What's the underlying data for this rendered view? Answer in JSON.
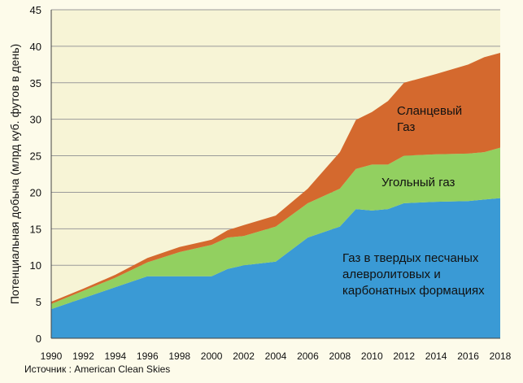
{
  "chart_data": {
    "type": "area",
    "stacked": true,
    "ylabel": "Потенциальная добыча (млрд куб. футов в день)",
    "xlabel": "",
    "source_note": "Источник : American Clean Skies",
    "x": [
      1990,
      1992,
      1994,
      1996,
      1998,
      2000,
      2001,
      2002,
      2004,
      2006,
      2008,
      2009,
      2010,
      2011,
      2012,
      2014,
      2016,
      2017,
      2018
    ],
    "x_ticks": [
      1990,
      1992,
      1994,
      1996,
      1998,
      2000,
      2002,
      2004,
      2006,
      2008,
      2010,
      2012,
      2014,
      2016,
      2018
    ],
    "ylim": [
      0,
      45
    ],
    "y_ticks": [
      0,
      5,
      10,
      15,
      20,
      25,
      30,
      35,
      40,
      45
    ],
    "grid": "horizontal",
    "series": [
      {
        "name": "Газ в твердых песчаных алевролитовых и карбонатных формациях",
        "color": "#3a9ad5",
        "values": [
          4.0,
          5.5,
          7.0,
          8.5,
          8.5,
          8.5,
          9.5,
          10.0,
          10.5,
          13.8,
          15.3,
          17.7,
          17.5,
          17.7,
          18.5,
          18.7,
          18.8,
          19.0,
          19.2
        ]
      },
      {
        "name": "Угольный газ",
        "color": "#92d060",
        "values": [
          0.7,
          1.0,
          1.3,
          1.9,
          3.3,
          4.3,
          4.3,
          4.0,
          4.8,
          4.7,
          5.2,
          5.5,
          6.3,
          6.1,
          6.5,
          6.5,
          6.5,
          6.5,
          6.9
        ]
      },
      {
        "name": "Сланцевый Газ",
        "color": "#d4692e",
        "values": [
          0.3,
          0.3,
          0.4,
          0.6,
          0.7,
          0.7,
          1.0,
          1.5,
          1.5,
          2.0,
          5.0,
          6.7,
          7.2,
          8.7,
          10.0,
          11.0,
          12.2,
          13.0,
          13.0
        ]
      }
    ],
    "annotations": [
      {
        "text": "Сланцевый",
        "series": 2
      },
      {
        "text": "Газ",
        "series": 2
      },
      {
        "text": "Угольный газ",
        "series": 1
      },
      {
        "text": "Газ в твердых песчаных",
        "series": 0
      },
      {
        "text": "алевролитовых и",
        "series": 0
      },
      {
        "text": "карбонатных формациях",
        "series": 0
      }
    ]
  }
}
